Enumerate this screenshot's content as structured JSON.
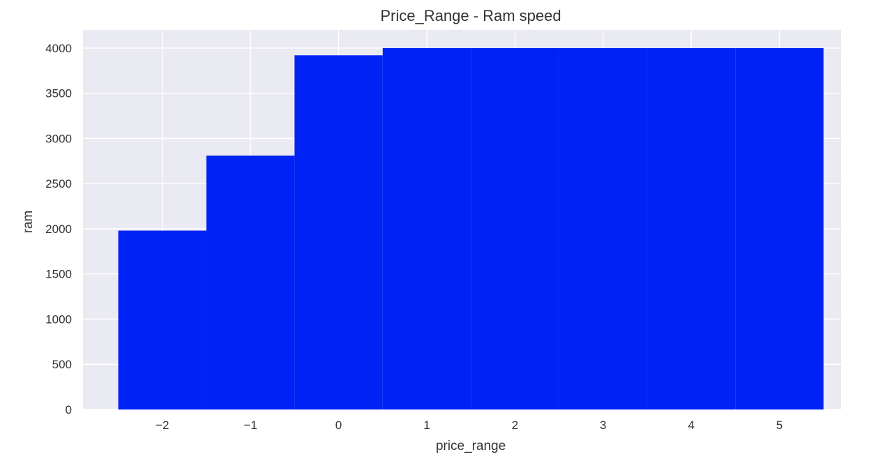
{
  "chart_data": {
    "type": "bar",
    "title": "Price_Range - Ram speed",
    "xlabel": "price_range",
    "ylabel": "ram",
    "x": [
      -2,
      -1,
      0,
      1,
      2,
      3,
      4,
      5
    ],
    "values": [
      1980,
      2810,
      3920,
      4000,
      4000,
      4000,
      4000,
      4000
    ],
    "bar_width": 1.0,
    "xlim": [
      -2.9,
      5.7
    ],
    "ylim": [
      0,
      4200
    ],
    "xticks": [
      -2,
      -1,
      0,
      1,
      2,
      3,
      4,
      5
    ],
    "xtick_labels": [
      "−2",
      "−1",
      "0",
      "1",
      "2",
      "3",
      "4",
      "5"
    ],
    "yticks": [
      0,
      500,
      1000,
      1500,
      2000,
      2500,
      3000,
      3500,
      4000
    ],
    "ytick_labels": [
      "0",
      "500",
      "1000",
      "1500",
      "2000",
      "2500",
      "3000",
      "3500",
      "4000"
    ],
    "grid": true,
    "bar_color": "#0022f5",
    "plot_background": "#eaeaf2",
    "grid_color": "#ffffff"
  }
}
